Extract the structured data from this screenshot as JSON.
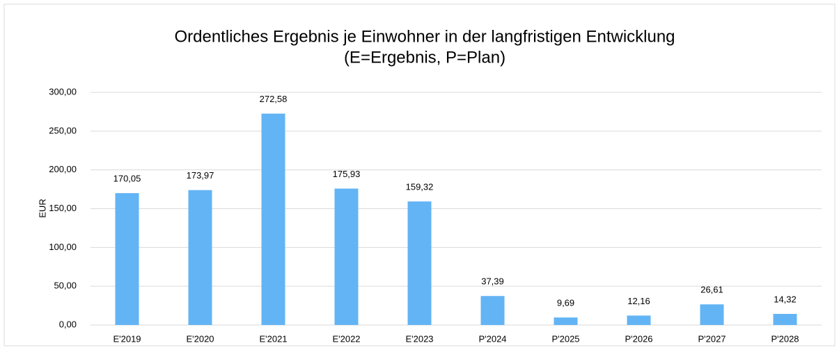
{
  "chart_data": {
    "type": "bar",
    "title": "Ordentliches Ergebnis je Einwohner in der langfristigen Entwicklung",
    "subtitle": "(E=Ergebnis, P=Plan)",
    "y_label": "EUR",
    "categories": [
      "E'2019",
      "E'2020",
      "E'2021",
      "E'2022",
      "E'2023",
      "P'2024",
      "P'2025",
      "P'2026",
      "P'2027",
      "P'2028"
    ],
    "values": [
      170.05,
      173.97,
      272.58,
      175.93,
      159.32,
      37.39,
      9.69,
      12.16,
      26.61,
      14.32
    ],
    "value_labels": [
      "170,05",
      "173,97",
      "272,58",
      "175,93",
      "159,32",
      "37,39",
      "9,69",
      "12,16",
      "26,61",
      "14,32"
    ],
    "color": "#63b4f4",
    "ylim": [
      0,
      300
    ],
    "yticks": [
      {
        "value": 0,
        "label": "0,00"
      },
      {
        "value": 50,
        "label": "50,00"
      },
      {
        "value": 100,
        "label": "100,00"
      },
      {
        "value": 150,
        "label": "150,00"
      },
      {
        "value": 200,
        "label": "200,00"
      },
      {
        "value": 250,
        "label": "250,00"
      },
      {
        "value": 300,
        "label": "300,00"
      }
    ],
    "grid": true
  }
}
